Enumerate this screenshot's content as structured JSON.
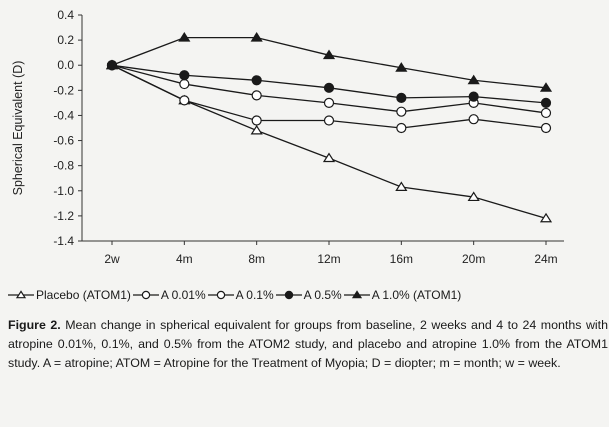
{
  "chart_data": {
    "type": "line",
    "title": "",
    "xlabel": "",
    "ylabel": "Spherical Equivalent (D)",
    "categories": [
      "2w",
      "4m",
      "8m",
      "12m",
      "16m",
      "20m",
      "24m"
    ],
    "ylim": [
      -1.4,
      0.4
    ],
    "yticks": [
      "0.4",
      "0.2",
      "0.0",
      "-0.2",
      "-0.4",
      "-0.6",
      "-0.8",
      "-1.0",
      "-1.2",
      "-1.4"
    ],
    "grid": false,
    "legend_position": "bottom",
    "series": [
      {
        "name": "Placebo (ATOM1)",
        "marker": "open-triangle",
        "values": [
          0.0,
          -0.28,
          -0.52,
          -0.74,
          -0.97,
          -1.05,
          -1.22
        ]
      },
      {
        "name": "A 0.01%",
        "marker": "open-circle",
        "values": [
          0.0,
          -0.28,
          -0.44,
          -0.44,
          -0.5,
          -0.43,
          -0.5
        ]
      },
      {
        "name": "A 0.1%",
        "marker": "open-circle",
        "values": [
          0.0,
          -0.15,
          -0.24,
          -0.3,
          -0.37,
          -0.3,
          -0.38
        ]
      },
      {
        "name": "A 0.5%",
        "marker": "filled-circle",
        "values": [
          0.0,
          -0.08,
          -0.12,
          -0.18,
          -0.26,
          -0.25,
          -0.3
        ]
      },
      {
        "name": "A 1.0% (ATOM1)",
        "marker": "filled-triangle",
        "values": [
          0.0,
          0.22,
          0.22,
          0.08,
          -0.02,
          -0.12,
          -0.18
        ]
      }
    ]
  },
  "caption": {
    "label": "Figure 2.",
    "text": " Mean change in spherical equivalent for groups from baseline, 2 weeks and 4 to 24 months with atropine 0.01%, 0.1%, and 0.5% from the ATOM2 study, and placebo and atropine 1.0% from the ATOM1 study. A = atropine; ATOM = Atropine for the Treatment of Myopia; D = diopter; m = month; w = week."
  },
  "colors": {
    "line": "#1a1a1a",
    "marker_fill_open": "#ffffff",
    "background": "#f4f4f2"
  }
}
